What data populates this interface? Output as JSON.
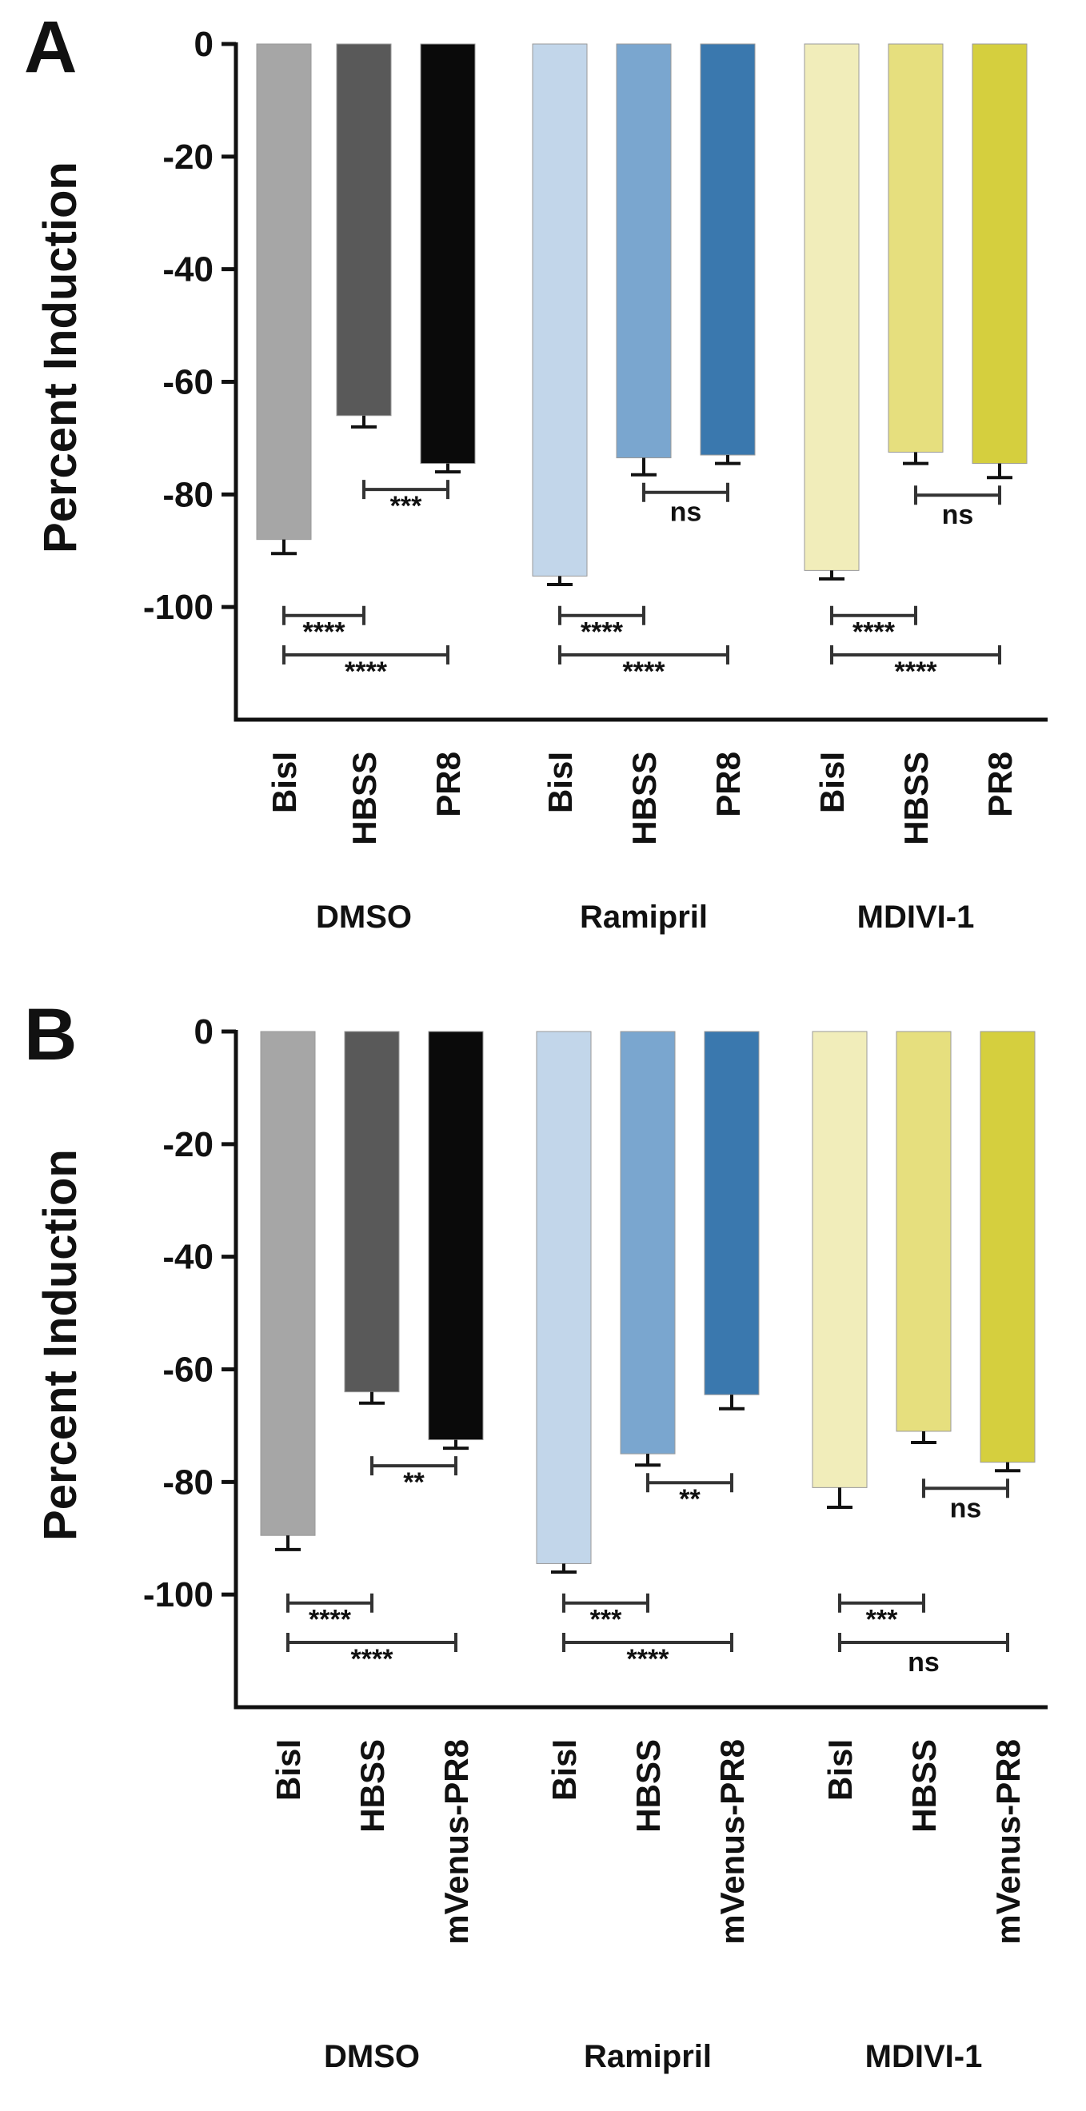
{
  "chart_data": [
    {
      "panel": "A",
      "type": "bar",
      "ylabel": "Percent Induction",
      "ylim": [
        -120,
        0
      ],
      "yticks": [
        0,
        -20,
        -40,
        -60,
        -80,
        -100
      ],
      "ytick_labels": [
        "0",
        "-20",
        "-40",
        "-60",
        "-80",
        "-100"
      ],
      "groups": [
        {
          "name": "DMSO",
          "bars": [
            {
              "label": "BisI",
              "value": -88,
              "error": 2.5,
              "color": "#a6a6a6"
            },
            {
              "label": "HBSS",
              "value": -66,
              "error": 2,
              "color": "#595959"
            },
            {
              "label": "PR8",
              "value": -74.5,
              "error": 1.5,
              "color": "#0a0a0a"
            }
          ],
          "comparisons": [
            {
              "from": 1,
              "to": 2,
              "label": "***",
              "level": "top"
            },
            {
              "from": 0,
              "to": 1,
              "label": "****",
              "level": "mid"
            },
            {
              "from": 0,
              "to": 2,
              "label": "****",
              "level": "low"
            }
          ]
        },
        {
          "name": "Ramipril",
          "bars": [
            {
              "label": "BisI",
              "value": -94.5,
              "error": 1.5,
              "color": "#c2d6ea"
            },
            {
              "label": "HBSS",
              "value": -73.5,
              "error": 3,
              "color": "#7aa6cf"
            },
            {
              "label": "PR8",
              "value": -73,
              "error": 1.5,
              "color": "#3a78ae"
            }
          ],
          "comparisons": [
            {
              "from": 1,
              "to": 2,
              "label": "ns",
              "level": "top"
            },
            {
              "from": 0,
              "to": 1,
              "label": "****",
              "level": "mid"
            },
            {
              "from": 0,
              "to": 2,
              "label": "****",
              "level": "low"
            }
          ]
        },
        {
          "name": "MDIVI-1",
          "bars": [
            {
              "label": "BisI",
              "value": -93.5,
              "error": 1.5,
              "color": "#f1edba"
            },
            {
              "label": "HBSS",
              "value": -72.5,
              "error": 2,
              "color": "#e6df7e"
            },
            {
              "label": "PR8",
              "value": -74.5,
              "error": 2.5,
              "color": "#d5cf3e"
            }
          ],
          "comparisons": [
            {
              "from": 1,
              "to": 2,
              "label": "ns",
              "level": "top"
            },
            {
              "from": 0,
              "to": 1,
              "label": "****",
              "level": "mid"
            },
            {
              "from": 0,
              "to": 2,
              "label": "****",
              "level": "low"
            }
          ]
        }
      ]
    },
    {
      "panel": "B",
      "type": "bar",
      "ylabel": "Percent Induction",
      "ylim": [
        -120,
        0
      ],
      "yticks": [
        0,
        -20,
        -40,
        -60,
        -80,
        -100
      ],
      "ytick_labels": [
        "0",
        "-20",
        "-40",
        "-60",
        "-80",
        "-100"
      ],
      "groups": [
        {
          "name": "DMSO",
          "bars": [
            {
              "label": "BisI",
              "value": -89.5,
              "error": 2.5,
              "color": "#a6a6a6"
            },
            {
              "label": "HBSS",
              "value": -64,
              "error": 2,
              "color": "#595959"
            },
            {
              "label": "mVenus-PR8",
              "value": -72.5,
              "error": 1.5,
              "color": "#0a0a0a"
            }
          ],
          "comparisons": [
            {
              "from": 1,
              "to": 2,
              "label": "**",
              "level": "top"
            },
            {
              "from": 0,
              "to": 1,
              "label": "****",
              "level": "mid"
            },
            {
              "from": 0,
              "to": 2,
              "label": "****",
              "level": "low"
            }
          ]
        },
        {
          "name": "Ramipril",
          "bars": [
            {
              "label": "BisI",
              "value": -94.5,
              "error": 1.5,
              "color": "#c2d6ea"
            },
            {
              "label": "HBSS",
              "value": -75,
              "error": 2,
              "color": "#7aa6cf"
            },
            {
              "label": "mVenus-PR8",
              "value": -64.5,
              "error": 2.5,
              "color": "#3a78ae"
            }
          ],
          "comparisons": [
            {
              "from": 1,
              "to": 2,
              "label": "**",
              "level": "top"
            },
            {
              "from": 0,
              "to": 1,
              "label": "***",
              "level": "mid"
            },
            {
              "from": 0,
              "to": 2,
              "label": "****",
              "level": "low"
            }
          ]
        },
        {
          "name": "MDIVI-1",
          "bars": [
            {
              "label": "BisI",
              "value": -81,
              "error": 3.5,
              "color": "#f1edba"
            },
            {
              "label": "HBSS",
              "value": -71,
              "error": 2,
              "color": "#e6df7e"
            },
            {
              "label": "mVenus-PR8",
              "value": -76.5,
              "error": 1.5,
              "color": "#d5cf3e"
            }
          ],
          "comparisons": [
            {
              "from": 1,
              "to": 2,
              "label": "ns",
              "level": "top"
            },
            {
              "from": 0,
              "to": 1,
              "label": "***",
              "level": "mid"
            },
            {
              "from": 0,
              "to": 2,
              "label": "ns",
              "level": "low"
            }
          ]
        }
      ]
    }
  ]
}
